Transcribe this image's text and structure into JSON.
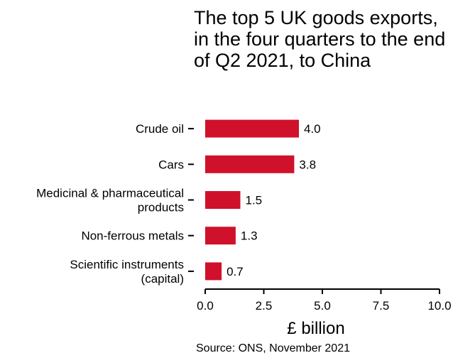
{
  "chart_data": {
    "type": "bar",
    "orientation": "horizontal",
    "title": "The top 5 UK goods exports, in the four quarters to the end of Q2 2021, to China",
    "categories": [
      [
        "Crude oil"
      ],
      [
        "Cars"
      ],
      [
        "Medicinal & pharmaceutical",
        "products"
      ],
      [
        "Non-ferrous metals"
      ],
      [
        "Scientific instruments",
        "(capital)"
      ]
    ],
    "values": [
      4.0,
      3.8,
      1.5,
      1.3,
      0.7
    ],
    "value_labels": [
      "4.0",
      "3.8",
      "1.5",
      "1.3",
      "0.7"
    ],
    "xlabel": "£ billion",
    "xlim": [
      0,
      10
    ],
    "xticks": [
      0,
      2.5,
      5,
      7.5,
      10
    ],
    "xtick_labels": [
      "0.0",
      "2.5",
      "5.0",
      "7.5",
      "10.0"
    ],
    "bar_color": "#d0112b",
    "grid": false,
    "source": "Source: ONS, November 2021"
  }
}
